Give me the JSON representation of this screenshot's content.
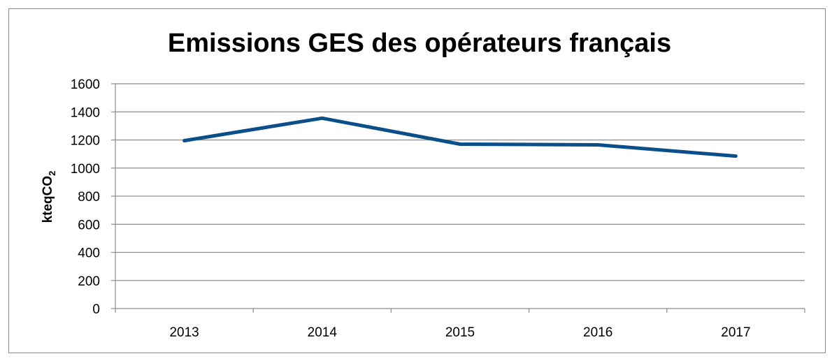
{
  "chart_data": {
    "type": "line",
    "title": "Emissions GES des opérateurs français",
    "ylabel_main": "kteqCO",
    "ylabel_sub": "2",
    "xlabel": "",
    "categories": [
      "2013",
      "2014",
      "2015",
      "2016",
      "2017"
    ],
    "series": [
      {
        "values": [
          1195,
          1355,
          1170,
          1165,
          1085
        ]
      }
    ],
    "ylim": [
      0,
      1600
    ],
    "yticks": [
      0,
      200,
      400,
      600,
      800,
      1000,
      1200,
      1400,
      1600
    ],
    "grid": true,
    "legend": "none",
    "colors": {
      "line": "#0b4f8a",
      "grid": "#8c8c8c",
      "axis": "#8c8c8c",
      "text": "#000000"
    }
  }
}
